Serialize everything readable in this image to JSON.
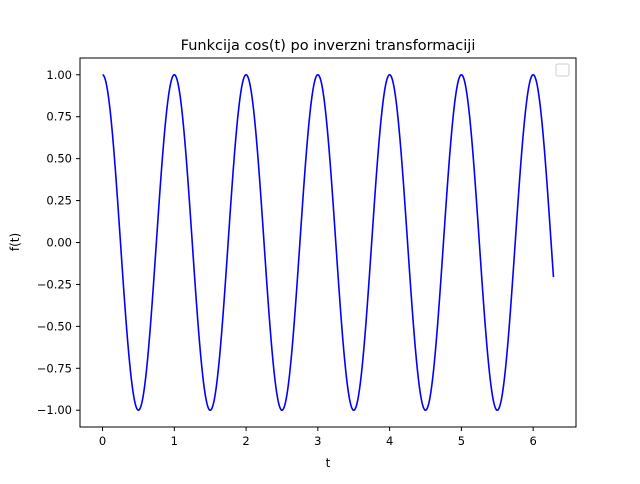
{
  "chart_data": {
    "type": "line",
    "title": "Funkcija cos(t) po inverzni transformaciji",
    "xlabel": "t",
    "ylabel": "f(t)",
    "xlim": [
      -0.314,
      6.597
    ],
    "ylim": [
      -1.1,
      1.1
    ],
    "x_ticks": [
      0,
      1,
      2,
      3,
      4,
      5,
      6
    ],
    "x_tick_labels": [
      "0",
      "1",
      "2",
      "3",
      "4",
      "5",
      "6"
    ],
    "y_ticks": [
      1.0,
      0.75,
      0.5,
      0.25,
      0.0,
      -0.25,
      -0.5,
      -0.75,
      -1.0
    ],
    "y_tick_labels": [
      "1.00",
      "0.75",
      "0.50",
      "0.25",
      "0.00",
      "−0.25",
      "−0.50",
      "−0.75",
      "−1.00"
    ],
    "grid": false,
    "legend": {
      "placement": "top-right",
      "entries": []
    },
    "series": [
      {
        "color": "#0000ff",
        "function": "cos(2πt)",
        "x_range": [
          0,
          6.283
        ],
        "samples": [
          [
            0,
            1.0
          ],
          [
            0.5,
            -1.0
          ],
          [
            1,
            1.0
          ],
          [
            1.5,
            -1.0
          ],
          [
            2,
            1.0
          ],
          [
            2.5,
            -1.0
          ],
          [
            3,
            1.0
          ],
          [
            3.5,
            -1.0
          ],
          [
            4,
            1.0
          ],
          [
            4.5,
            -1.0
          ],
          [
            5,
            1.0
          ],
          [
            5.5,
            -1.0
          ],
          [
            6,
            1.0
          ],
          [
            6.283,
            -0.17
          ]
        ]
      }
    ]
  }
}
